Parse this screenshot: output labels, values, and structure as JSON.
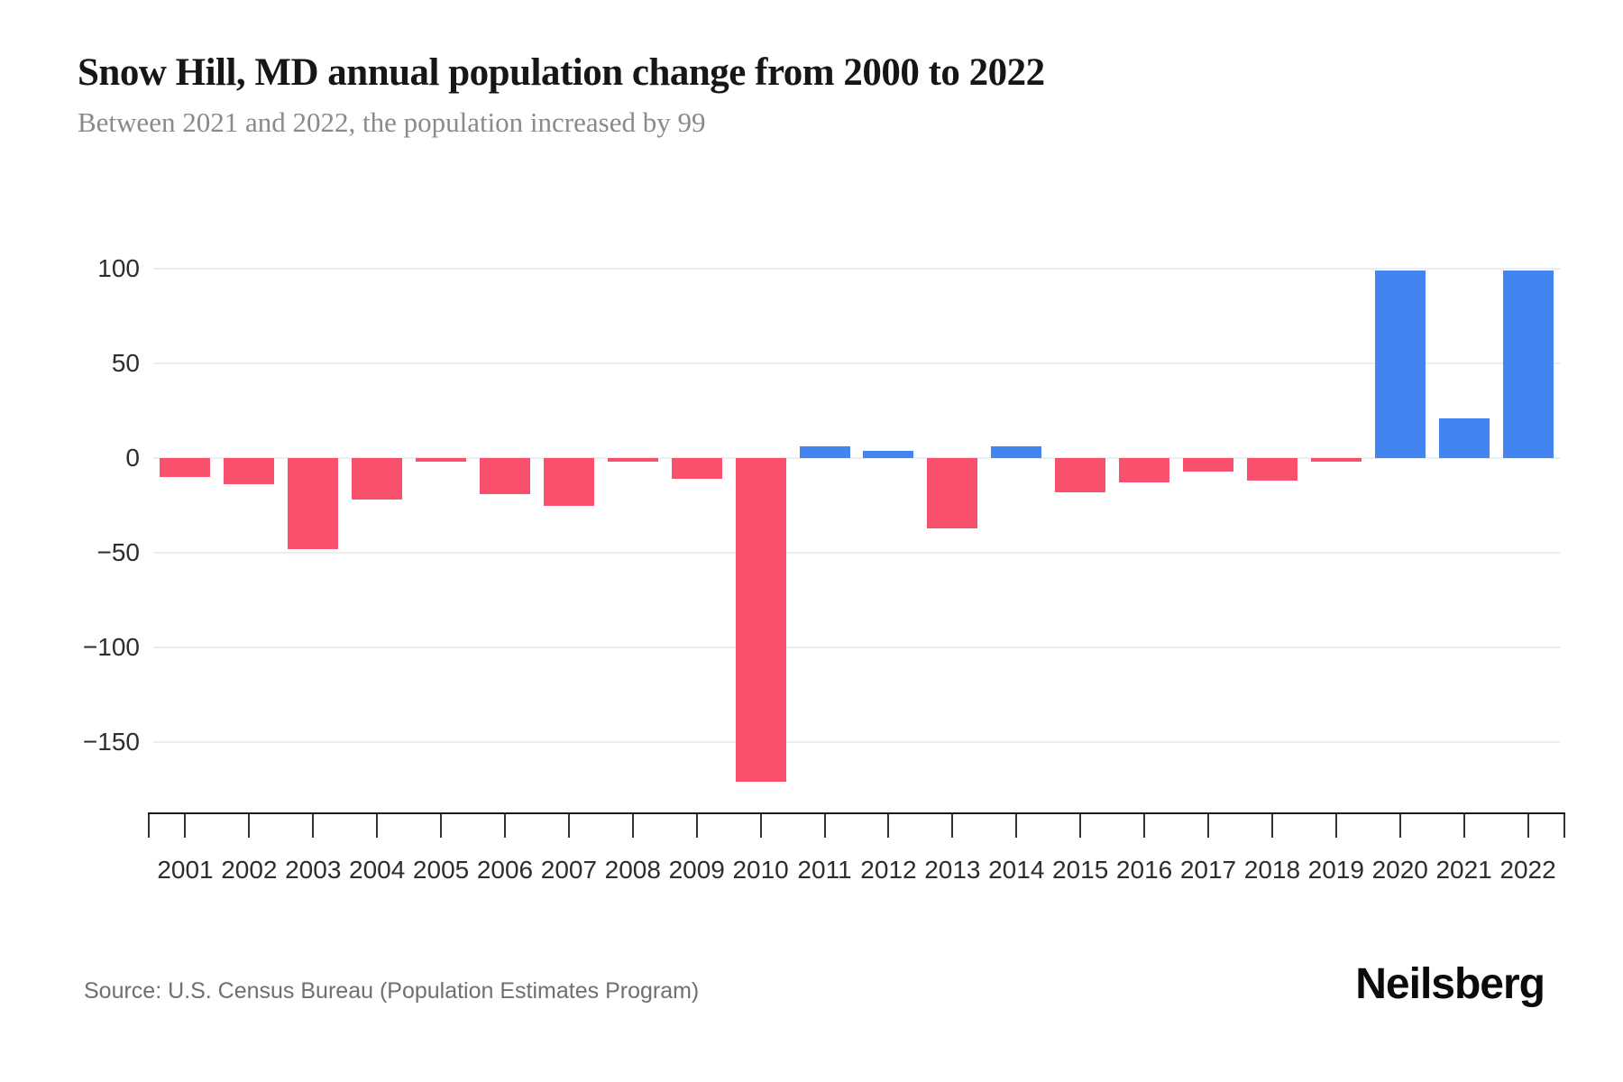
{
  "page": {
    "title": "Snow Hill, MD annual population change from 2000 to 2022",
    "subtitle": "Between 2021 and 2022, the population increased by 99",
    "source": "Source: U.S. Census Bureau (Population Estimates Program)",
    "brand": "Neilsberg"
  },
  "chart_data": {
    "type": "bar",
    "title": "Snow Hill, MD annual population change from 2000 to 2022",
    "subtitle": "Between 2021 and 2022, the population increased by 99",
    "series_name": "Annual population change",
    "categories": [
      "2001",
      "2002",
      "2003",
      "2004",
      "2005",
      "2006",
      "2007",
      "2008",
      "2009",
      "2010",
      "2011",
      "2012",
      "2013",
      "2014",
      "2015",
      "2016",
      "2017",
      "2018",
      "2019",
      "2020",
      "2021",
      "2022"
    ],
    "values": [
      -10,
      -14,
      -48,
      -22,
      -2,
      -19,
      -25,
      -2,
      -11,
      -171,
      6,
      4,
      -37,
      6,
      -18,
      -13,
      -7,
      -12,
      -2,
      99,
      21,
      99
    ],
    "xlabel": "",
    "ylabel": "",
    "ylim": [
      -171,
      100
    ],
    "yticks": [
      100,
      50,
      0,
      -50,
      -100,
      -150
    ],
    "ytick_labels": [
      "100",
      "50",
      "0",
      "−50",
      "−100",
      "−150"
    ],
    "grid": "horizontal",
    "legend": "none",
    "colors": {
      "positive": "#4385f0",
      "negative": "#f9506e"
    }
  }
}
